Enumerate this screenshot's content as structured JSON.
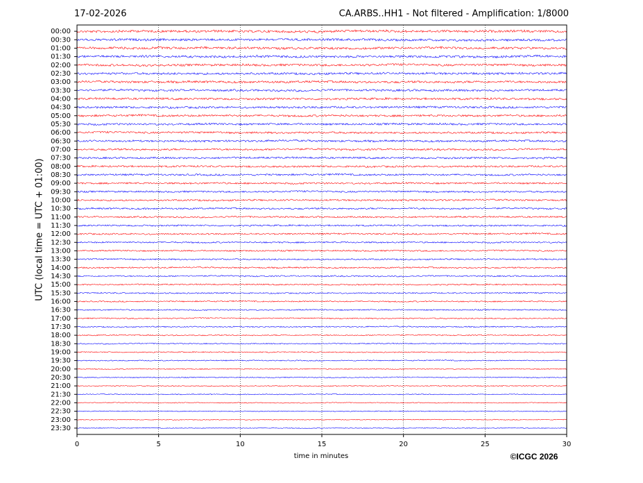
{
  "chart_data": {
    "type": "helicorder",
    "date": "17-02-2026",
    "title": "CA.ARBS..HH1 - Not filtered - Amplification: 1/8000",
    "categories": [
      "00:00",
      "00:30",
      "01:00",
      "01:30",
      "02:00",
      "02:30",
      "03:00",
      "03:30",
      "04:00",
      "04:30",
      "05:00",
      "05:30",
      "06:00",
      "06:30",
      "07:00",
      "07:30",
      "08:00",
      "08:30",
      "09:00",
      "09:30",
      "10:00",
      "10:30",
      "11:00",
      "11:30",
      "12:00",
      "12:30",
      "13:00",
      "13:30",
      "14:00",
      "14:30",
      "15:00",
      "15:30",
      "16:00",
      "16:30",
      "17:00",
      "17:30",
      "18:00",
      "18:30",
      "19:00",
      "19:30",
      "20:00",
      "20:30",
      "21:00",
      "21:30",
      "22:00",
      "22:30",
      "23:00",
      "23:30"
    ],
    "xlabel": "time in minutes",
    "ylabel": "UTC (local time = UTC + 01:00)",
    "xlim": [
      0,
      30
    ],
    "xticks": [
      0,
      5,
      10,
      15,
      20,
      25,
      30
    ],
    "grid": true,
    "colors": [
      "#ff0000",
      "#0000ff"
    ],
    "copyright": "©ICGC 2026"
  }
}
